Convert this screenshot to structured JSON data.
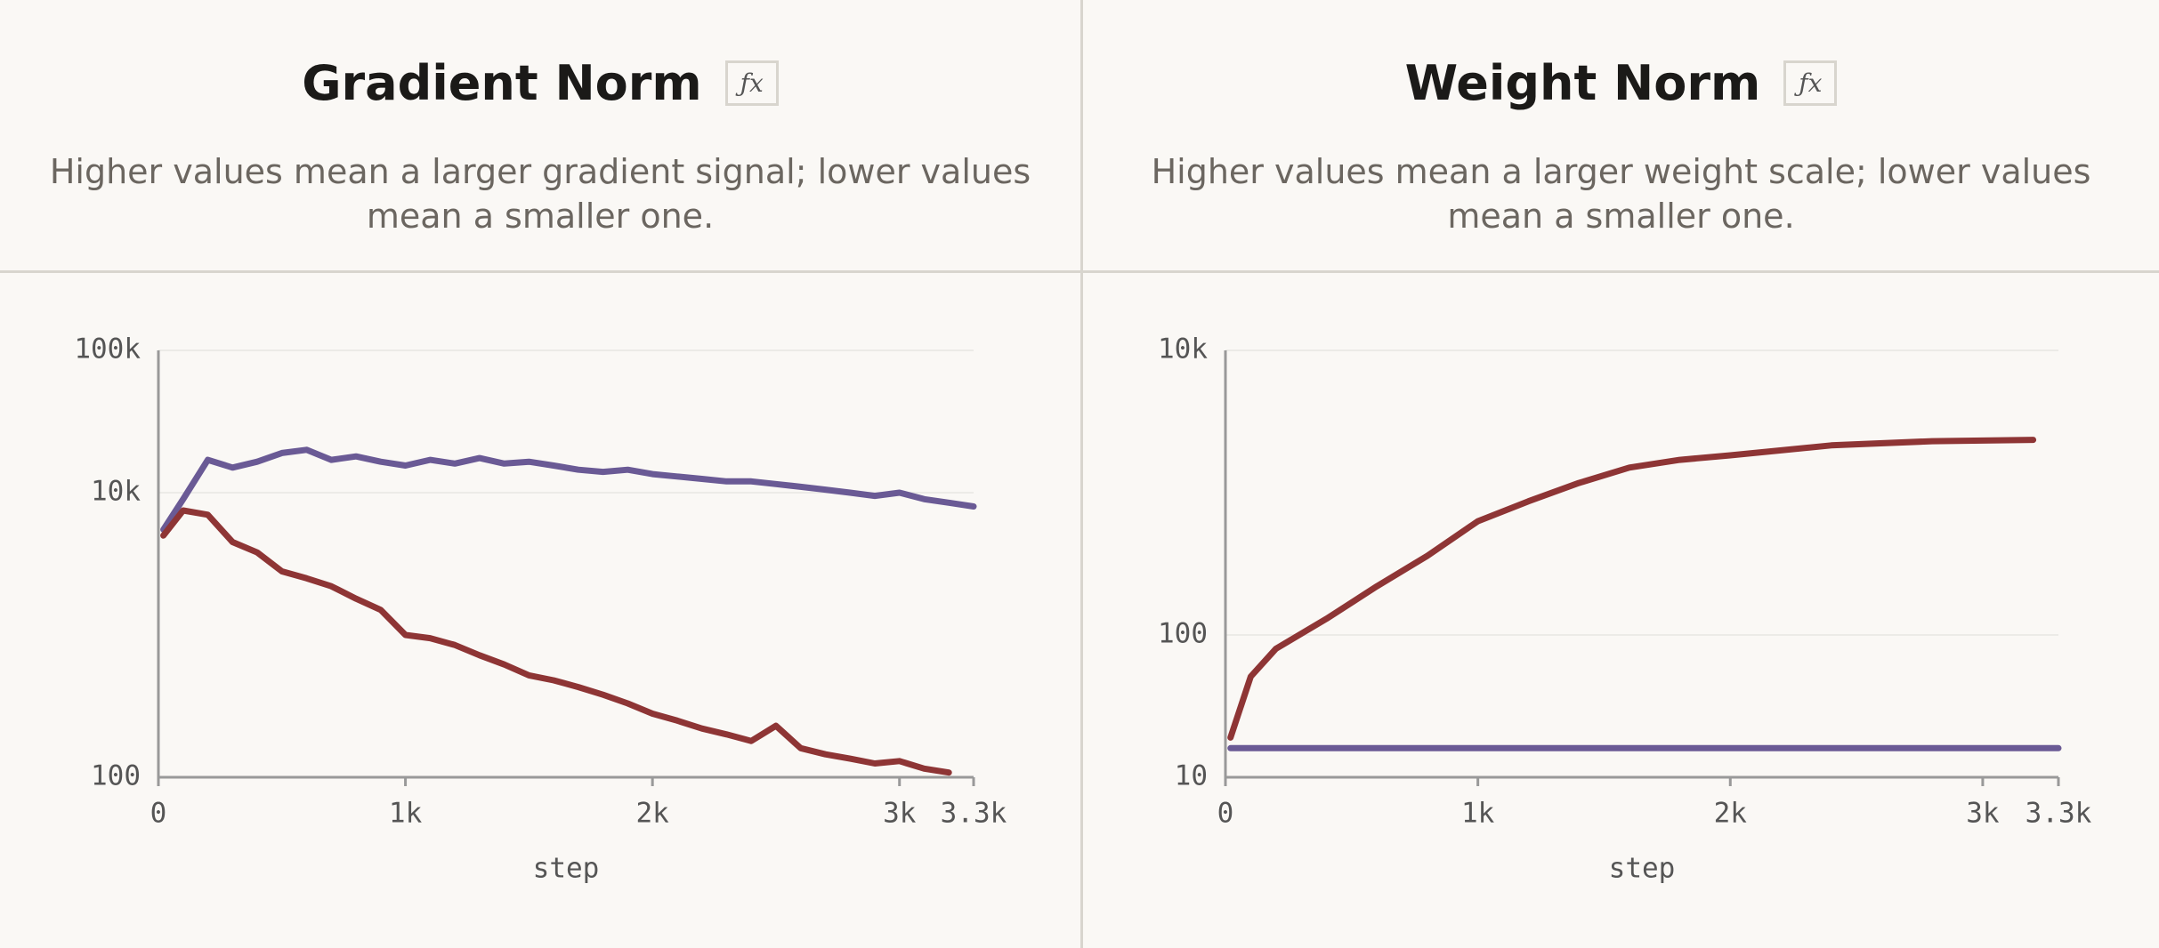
{
  "chart_data": [
    {
      "type": "line",
      "title": "Gradient Norm",
      "badge": "ƒx",
      "subtitle": "Higher values mean a larger gradient signal; lower values mean a smaller one.",
      "x_label": "step",
      "yscale": "log",
      "grid": true,
      "xlim": [
        0,
        3300
      ],
      "xticks": [
        0,
        {
          "value": 1000,
          "label": "1k"
        },
        {
          "value": 2000,
          "label": "2k"
        },
        {
          "value": 3000,
          "label": "3k"
        },
        {
          "value": 3300,
          "label": "3.3k"
        }
      ],
      "ylim": [
        100,
        100000
      ],
      "yticks": [
        100,
        {
          "value": 10000,
          "label": "10k"
        },
        {
          "value": 100000,
          "label": "100k"
        }
      ],
      "series": [
        {
          "color": "#6a5a95",
          "x": [
            20,
            100,
            200,
            300,
            400,
            500,
            600,
            700,
            800,
            900,
            1000,
            1100,
            1200,
            1300,
            1400,
            1500,
            1600,
            1700,
            1800,
            1900,
            2000,
            2100,
            2200,
            2300,
            2400,
            2500,
            2600,
            2700,
            2800,
            2900,
            3000,
            3100,
            3200,
            3300
          ],
          "values": [
            5500,
            9000,
            17000,
            15000,
            16500,
            19000,
            20000,
            17000,
            18000,
            16500,
            15500,
            17000,
            16000,
            17500,
            16000,
            16500,
            15500,
            14500,
            14000,
            14500,
            13500,
            13000,
            12500,
            12000,
            12000,
            11500,
            11000,
            10500,
            10000,
            9500,
            10000,
            9000,
            8500,
            8000
          ]
        },
        {
          "color": "#8e3535",
          "x": [
            20,
            100,
            200,
            300,
            400,
            500,
            600,
            700,
            800,
            900,
            1000,
            1100,
            1200,
            1300,
            1400,
            1500,
            1600,
            1700,
            1800,
            1900,
            2000,
            2100,
            2200,
            2300,
            2400,
            2500,
            2600,
            2700,
            2800,
            2900,
            3000,
            3100,
            3200
          ],
          "values": [
            5000,
            7500,
            7000,
            4500,
            3800,
            2800,
            2500,
            2200,
            1800,
            1500,
            1000,
            950,
            850,
            720,
            620,
            520,
            480,
            430,
            380,
            330,
            280,
            250,
            220,
            200,
            180,
            230,
            160,
            145,
            135,
            125,
            130,
            115,
            108
          ]
        }
      ]
    },
    {
      "type": "line",
      "title": "Weight Norm",
      "badge": "ƒx",
      "subtitle": "Higher values mean a larger weight scale; lower values mean a smaller one.",
      "x_label": "step",
      "yscale": "log",
      "grid": true,
      "xlim": [
        0,
        3300
      ],
      "xticks": [
        0,
        {
          "value": 1000,
          "label": "1k"
        },
        {
          "value": 2000,
          "label": "2k"
        },
        {
          "value": 3000,
          "label": "3k"
        },
        {
          "value": 3300,
          "label": "3.3k"
        }
      ],
      "ylim": [
        10,
        10000
      ],
      "yticks": [
        10,
        100,
        {
          "value": 10000,
          "label": "10k"
        }
      ],
      "series": [
        {
          "color": "#8e3535",
          "x": [
            20,
            100,
            200,
            400,
            600,
            800,
            1000,
            1200,
            1400,
            1600,
            1800,
            2000,
            2400,
            2800,
            3200
          ],
          "values": [
            19,
            51,
            80,
            130,
            220,
            360,
            630,
            870,
            1170,
            1500,
            1700,
            1830,
            2150,
            2300,
            2350
          ]
        },
        {
          "color": "#6a5a95",
          "x": [
            20,
            3300
          ],
          "values": [
            16,
            16
          ]
        }
      ]
    }
  ]
}
